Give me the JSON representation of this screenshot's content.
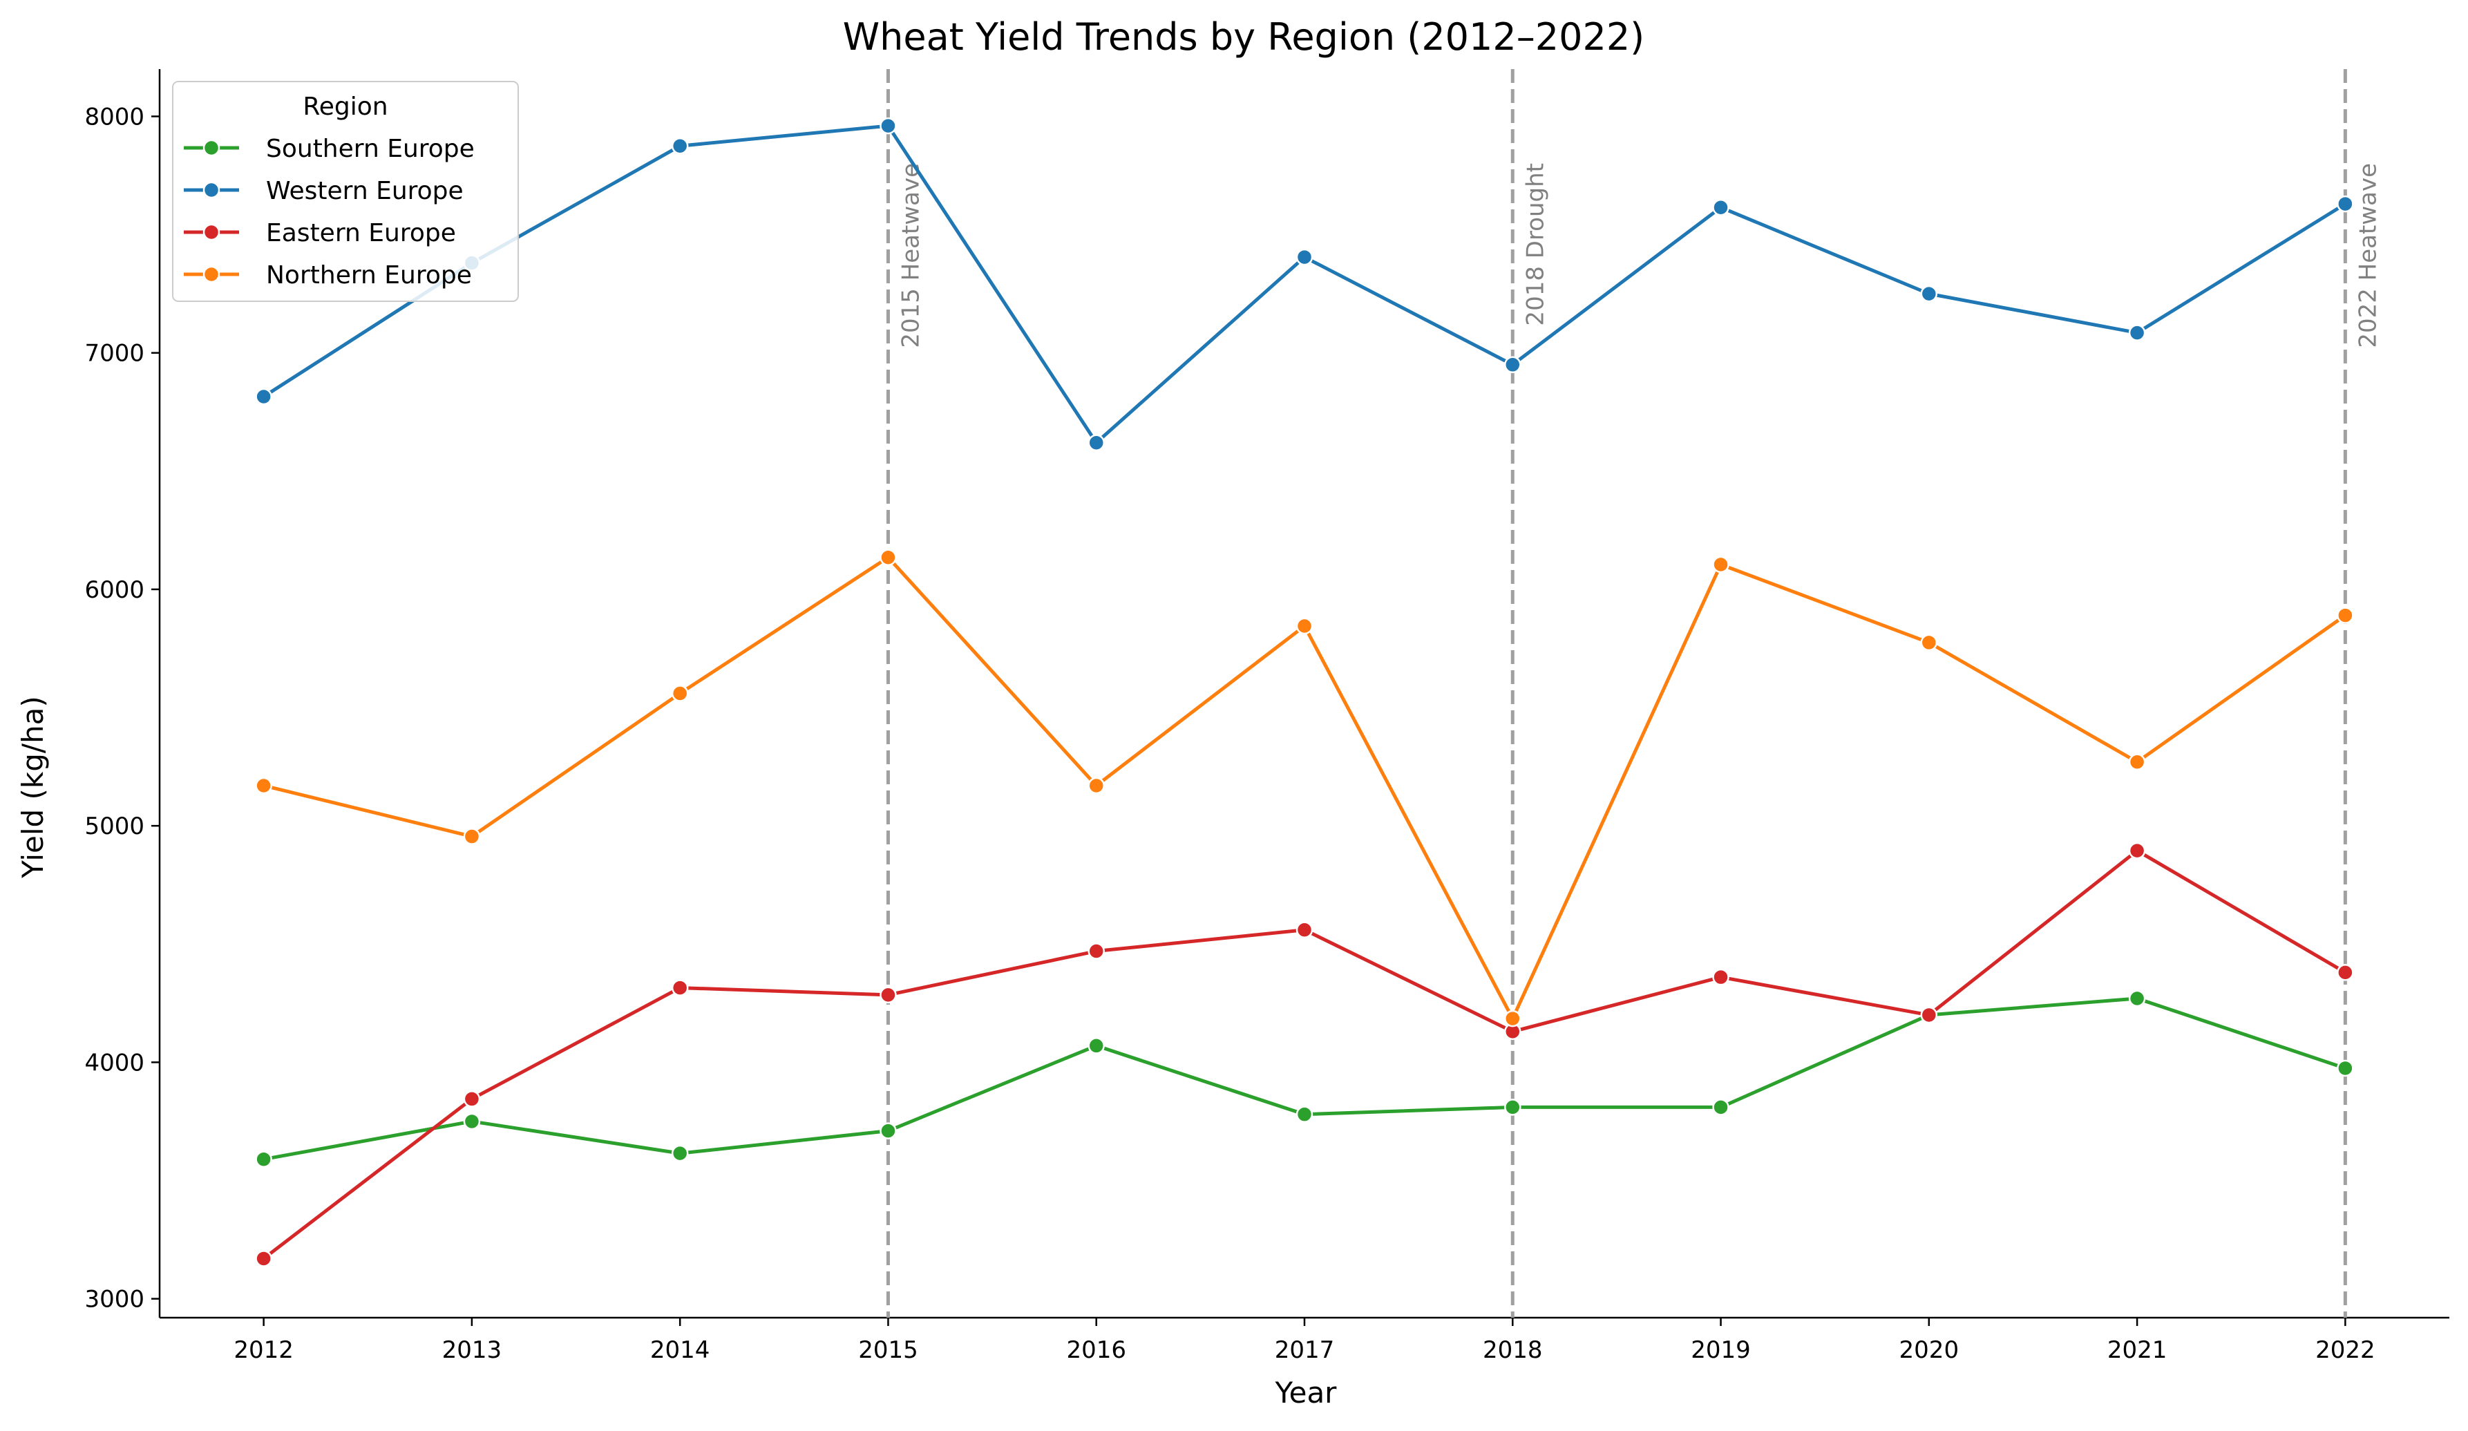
{
  "chart_data": {
    "type": "line",
    "title": "Wheat Yield Trends by Region (2012–2022)",
    "xlabel": "Year",
    "ylabel": "Yield (kg/ha)",
    "x": [
      2012,
      2013,
      2014,
      2015,
      2016,
      2017,
      2018,
      2019,
      2020,
      2021,
      2022
    ],
    "xlim": [
      2011.5,
      2022.5
    ],
    "ylim": [
      2920,
      8200
    ],
    "yticks": [
      3000,
      4000,
      5000,
      6000,
      7000,
      8000
    ],
    "grid": false,
    "legend": {
      "title": "Region",
      "position": "top-left"
    },
    "series": [
      {
        "name": "Southern Europe",
        "color": "#2ca02c",
        "values": [
          3590,
          3750,
          3615,
          3710,
          4070,
          3780,
          3810,
          3810,
          4200,
          4270,
          3975
        ]
      },
      {
        "name": "Western Europe",
        "color": "#1f77b4",
        "values": [
          6815,
          7380,
          7875,
          7960,
          6620,
          7405,
          6950,
          7615,
          7250,
          7085,
          7630
        ]
      },
      {
        "name": "Eastern Europe",
        "color": "#d62728",
        "values": [
          3170,
          3845,
          4315,
          4285,
          4470,
          4560,
          4130,
          4360,
          4200,
          4895,
          4380
        ]
      },
      {
        "name": "Northern Europe",
        "color": "#ff7f0e",
        "values": [
          5170,
          4955,
          5560,
          6135,
          5170,
          5845,
          4185,
          6105,
          5775,
          5270,
          5890
        ]
      }
    ],
    "annotations": [
      {
        "x": 2015,
        "label": "2015 Heatwave"
      },
      {
        "x": 2018,
        "label": "2018 Drought"
      },
      {
        "x": 2022,
        "label": "2022 Heatwave"
      }
    ]
  }
}
